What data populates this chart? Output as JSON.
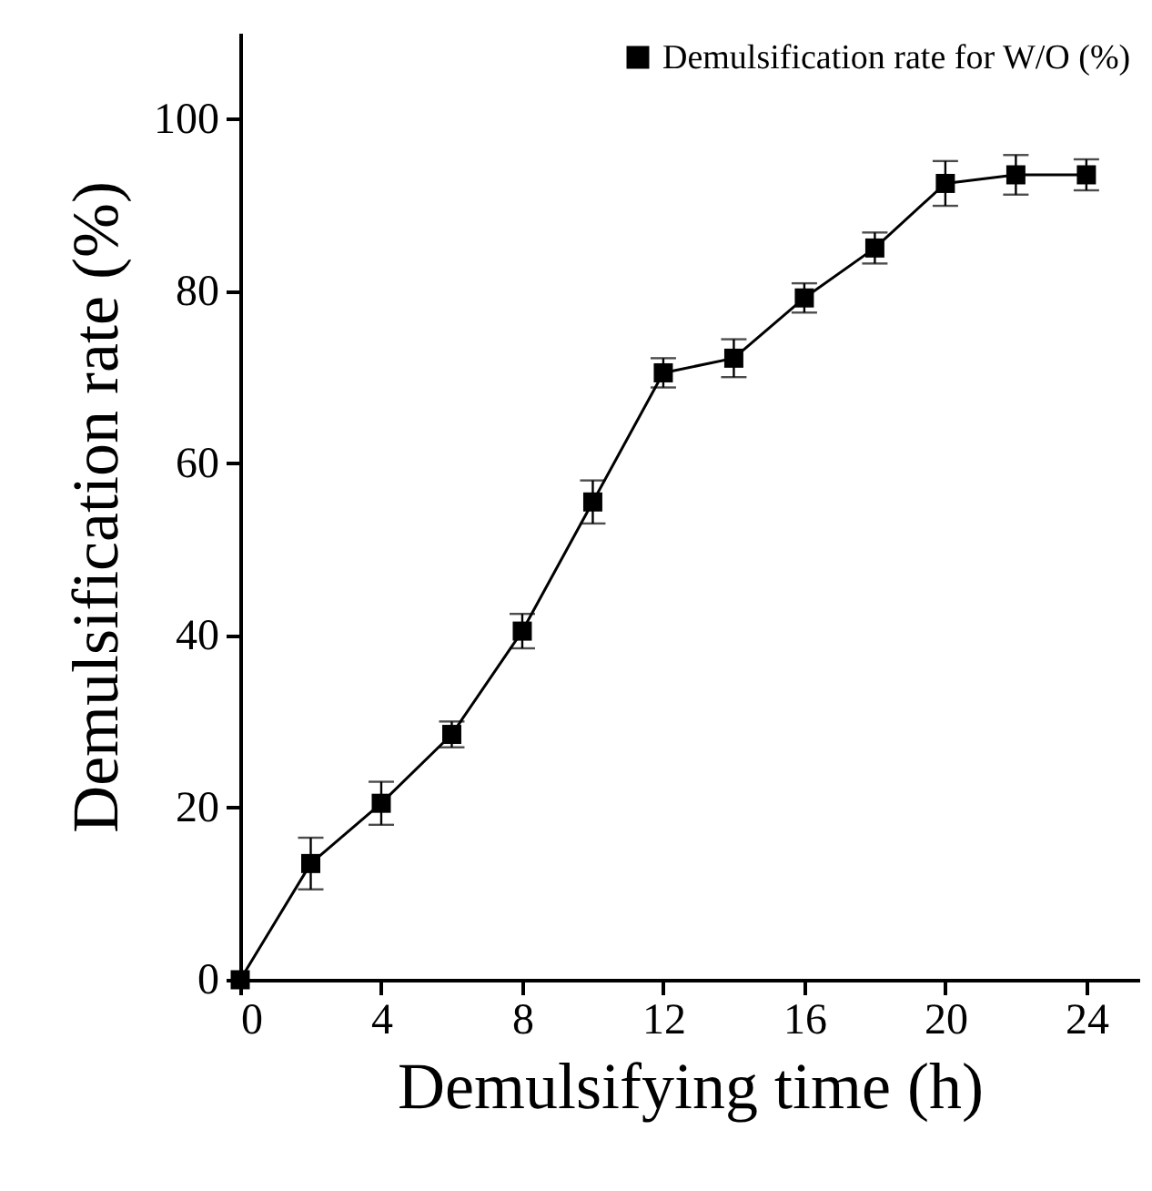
{
  "chart_data": {
    "type": "line",
    "xlabel": "Demulsifying time (h)",
    "ylabel": "Demulsification rate (%)",
    "x": [
      0,
      2,
      4,
      6,
      8,
      10,
      12,
      14,
      16,
      18,
      20,
      22,
      24
    ],
    "series": [
      {
        "name": "Demulsification rate for W/O (%)",
        "color": "#000000",
        "values": [
          0,
          13.5,
          20.5,
          28.5,
          40.5,
          55.5,
          70.5,
          72.2,
          79.2,
          85,
          92.5,
          93.5,
          93.5
        ],
        "errors": [
          null,
          3,
          2.5,
          1.5,
          2,
          2.5,
          1.7,
          2.2,
          1.7,
          1.8,
          2.6,
          2.3,
          1.8
        ]
      }
    ],
    "xlim": [
      0,
      25.5
    ],
    "ylim": [
      0,
      110
    ],
    "xticks": [
      0,
      4,
      8,
      12,
      16,
      20,
      24
    ],
    "yticks": [
      0,
      20,
      40,
      60,
      80,
      100
    ],
    "legend": "top right",
    "marker": "square",
    "line_style": "solid"
  }
}
